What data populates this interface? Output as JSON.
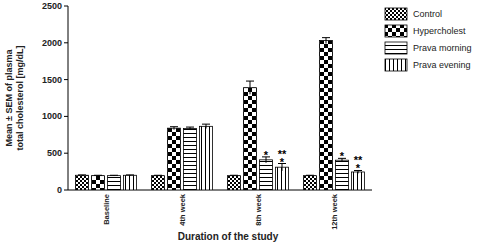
{
  "chart_data": {
    "type": "bar",
    "x_label": "Duration of the study",
    "y_label": "Mean ± SEM of plasma total cholesterol [mg/dL]",
    "categories": [
      "Baseline",
      "4th week",
      "8th week",
      "12th week"
    ],
    "series": [
      {
        "name": "Control",
        "color": "#000000",
        "values": [
          200,
          195,
          195,
          195
        ],
        "errors": [
          5,
          5,
          5,
          5
        ]
      },
      {
        "name": "Hypercholest",
        "color": "#000000",
        "values": [
          195,
          840,
          1390,
          2030
        ],
        "errors": [
          5,
          20,
          90,
          40
        ]
      },
      {
        "name": "Prava morning",
        "color": "#000000",
        "values": [
          195,
          835,
          410,
          405
        ],
        "errors": [
          5,
          20,
          40,
          25
        ],
        "annotations": [
          null,
          null,
          [
            "*"
          ],
          [
            "*"
          ]
        ]
      },
      {
        "name": "Prava evening",
        "color": "#000000",
        "values": [
          200,
          865,
          310,
          245
        ],
        "errors": [
          5,
          30,
          50,
          20
        ],
        "annotations": [
          null,
          null,
          [
            "**",
            "*"
          ],
          [
            "**",
            "*"
          ]
        ]
      }
    ],
    "ylim": [
      0,
      2500
    ],
    "yticks": [
      0,
      500,
      1000,
      1500,
      2000,
      2500
    ],
    "grid": false,
    "legend": "right"
  }
}
